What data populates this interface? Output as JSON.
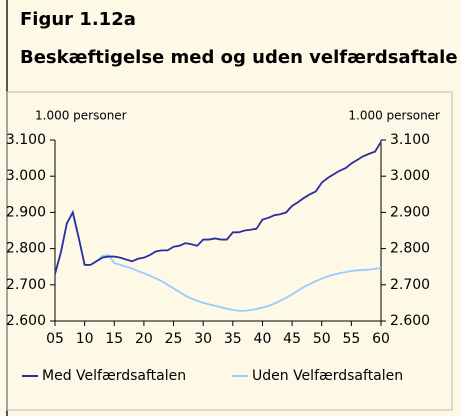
{
  "chart_data": {
    "type": "line",
    "figure_label": "Figur 1.12a",
    "title": "Beskæftigelse med og uden velfærdsaftale",
    "y_label": "1.000 personer",
    "y2_label": "1.000 personer",
    "x": [
      2005,
      2006,
      2007,
      2008,
      2009,
      2010,
      2011,
      2012,
      2013,
      2014,
      2015,
      2016,
      2017,
      2018,
      2019,
      2020,
      2021,
      2022,
      2023,
      2024,
      2025,
      2026,
      2027,
      2028,
      2029,
      2030,
      2031,
      2032,
      2033,
      2034,
      2035,
      2036,
      2037,
      2038,
      2039,
      2040,
      2041,
      2042,
      2043,
      2044,
      2045,
      2046,
      2047,
      2048,
      2049,
      2050,
      2051,
      2052,
      2053,
      2054,
      2055,
      2056,
      2057,
      2058,
      2059,
      2060
    ],
    "series": [
      {
        "name": "Med Velfærdsaftalen",
        "color": "#2b2f9e",
        "values": [
          2730,
          2790,
          2870,
          2900,
          2830,
          2755,
          2755,
          2765,
          2775,
          2778,
          2778,
          2775,
          2770,
          2765,
          2772,
          2775,
          2782,
          2792,
          2795,
          2795,
          2805,
          2808,
          2815,
          2812,
          2808,
          2825,
          2825,
          2828,
          2825,
          2825,
          2845,
          2845,
          2850,
          2852,
          2855,
          2880,
          2885,
          2892,
          2895,
          2900,
          2918,
          2928,
          2940,
          2950,
          2958,
          2982,
          2995,
          3005,
          3015,
          3022,
          3035,
          3045,
          3055,
          3062,
          3068,
          3095
        ]
      },
      {
        "name": "Uden Velfærdsaftalen",
        "color": "#99ccff",
        "values": [
          2730,
          2790,
          2870,
          2900,
          2830,
          2755,
          2755,
          2765,
          2780,
          2782,
          2760,
          2755,
          2750,
          2745,
          2738,
          2732,
          2725,
          2718,
          2710,
          2700,
          2690,
          2680,
          2670,
          2662,
          2656,
          2650,
          2646,
          2642,
          2638,
          2634,
          2631,
          2628,
          2628,
          2630,
          2633,
          2637,
          2642,
          2648,
          2656,
          2664,
          2674,
          2684,
          2694,
          2702,
          2710,
          2717,
          2723,
          2728,
          2732,
          2735,
          2738,
          2740,
          2741,
          2742,
          2744,
          2747
        ]
      }
    ],
    "xlim": [
      2005,
      2060
    ],
    "xticks": [
      {
        "value": 2005,
        "label": "05"
      },
      {
        "value": 2010,
        "label": "10"
      },
      {
        "value": 2015,
        "label": "15"
      },
      {
        "value": 2020,
        "label": "20"
      },
      {
        "value": 2025,
        "label": "25"
      },
      {
        "value": 2030,
        "label": "30"
      },
      {
        "value": 2035,
        "label": "35"
      },
      {
        "value": 2040,
        "label": "40"
      },
      {
        "value": 2045,
        "label": "45"
      },
      {
        "value": 2050,
        "label": "50"
      },
      {
        "value": 2055,
        "label": "55"
      },
      {
        "value": 2060,
        "label": "60"
      }
    ],
    "ylim": [
      2600,
      3100
    ],
    "yticks": [
      {
        "value": 2600,
        "label": "2.600"
      },
      {
        "value": 2700,
        "label": "2.700"
      },
      {
        "value": 2800,
        "label": "2.800"
      },
      {
        "value": 2900,
        "label": "2.900"
      },
      {
        "value": 3000,
        "label": "3.000"
      },
      {
        "value": 3100,
        "label": "3.100"
      }
    ],
    "legend": "bottom"
  }
}
